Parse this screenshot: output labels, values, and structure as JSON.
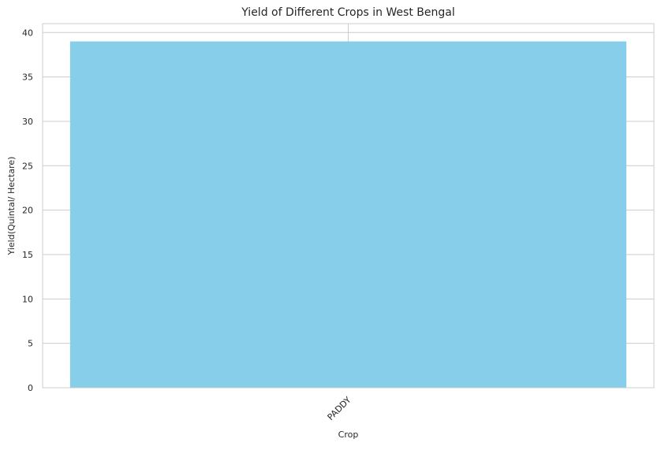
{
  "chart_data": {
    "type": "bar",
    "title": "Yield of Different Crops in West Bengal",
    "xlabel": "Crop",
    "ylabel": "Yield(Quintal/ Hectare)",
    "categories": [
      "PADDY"
    ],
    "values": [
      39
    ],
    "ylim": [
      0,
      41
    ],
    "yticks": [
      0,
      5,
      10,
      15,
      20,
      25,
      30,
      35,
      40
    ],
    "grid": true,
    "bar_color": "#87CEEB",
    "grid_color": "#cccccc"
  }
}
